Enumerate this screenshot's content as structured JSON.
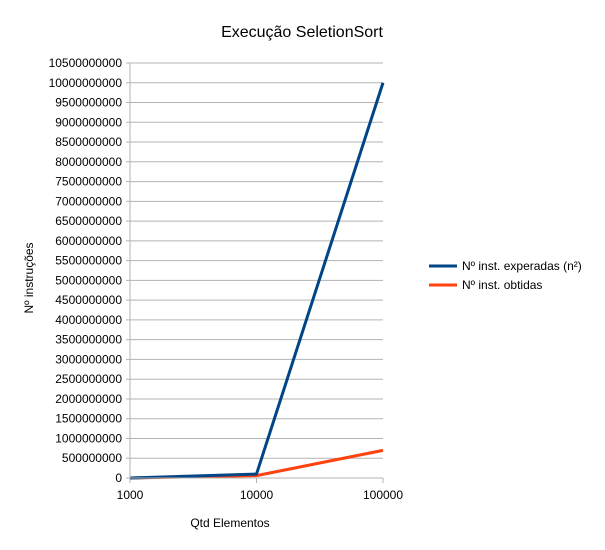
{
  "chart_data": {
    "type": "line",
    "title": "Execução SeletionSort",
    "xlabel": "Qtd Elementos",
    "ylabel": "Nº instruções",
    "categories": [
      "1000",
      "10000",
      "100000"
    ],
    "series": [
      {
        "name": "Nº inst. experadas (n²)",
        "color": "#004586",
        "values": [
          1000000,
          100000000,
          10000000000
        ]
      },
      {
        "name": "Nº inst. obtidas",
        "color": "#ff420e",
        "values": [
          1000000,
          60000000,
          700000000
        ]
      }
    ],
    "ylim": [
      0,
      10500000000
    ],
    "ytick_step": 500000000,
    "yticks": [
      "0",
      "500000000",
      "1000000000",
      "1500000000",
      "2000000000",
      "2500000000",
      "3000000000",
      "3500000000",
      "4000000000",
      "4500000000",
      "5000000000",
      "5500000000",
      "6000000000",
      "6500000000",
      "7000000000",
      "7500000000",
      "8000000000",
      "8500000000",
      "9000000000",
      "9500000000",
      "10000000000",
      "10500000000"
    ],
    "grid": true,
    "legend_position": "right"
  }
}
